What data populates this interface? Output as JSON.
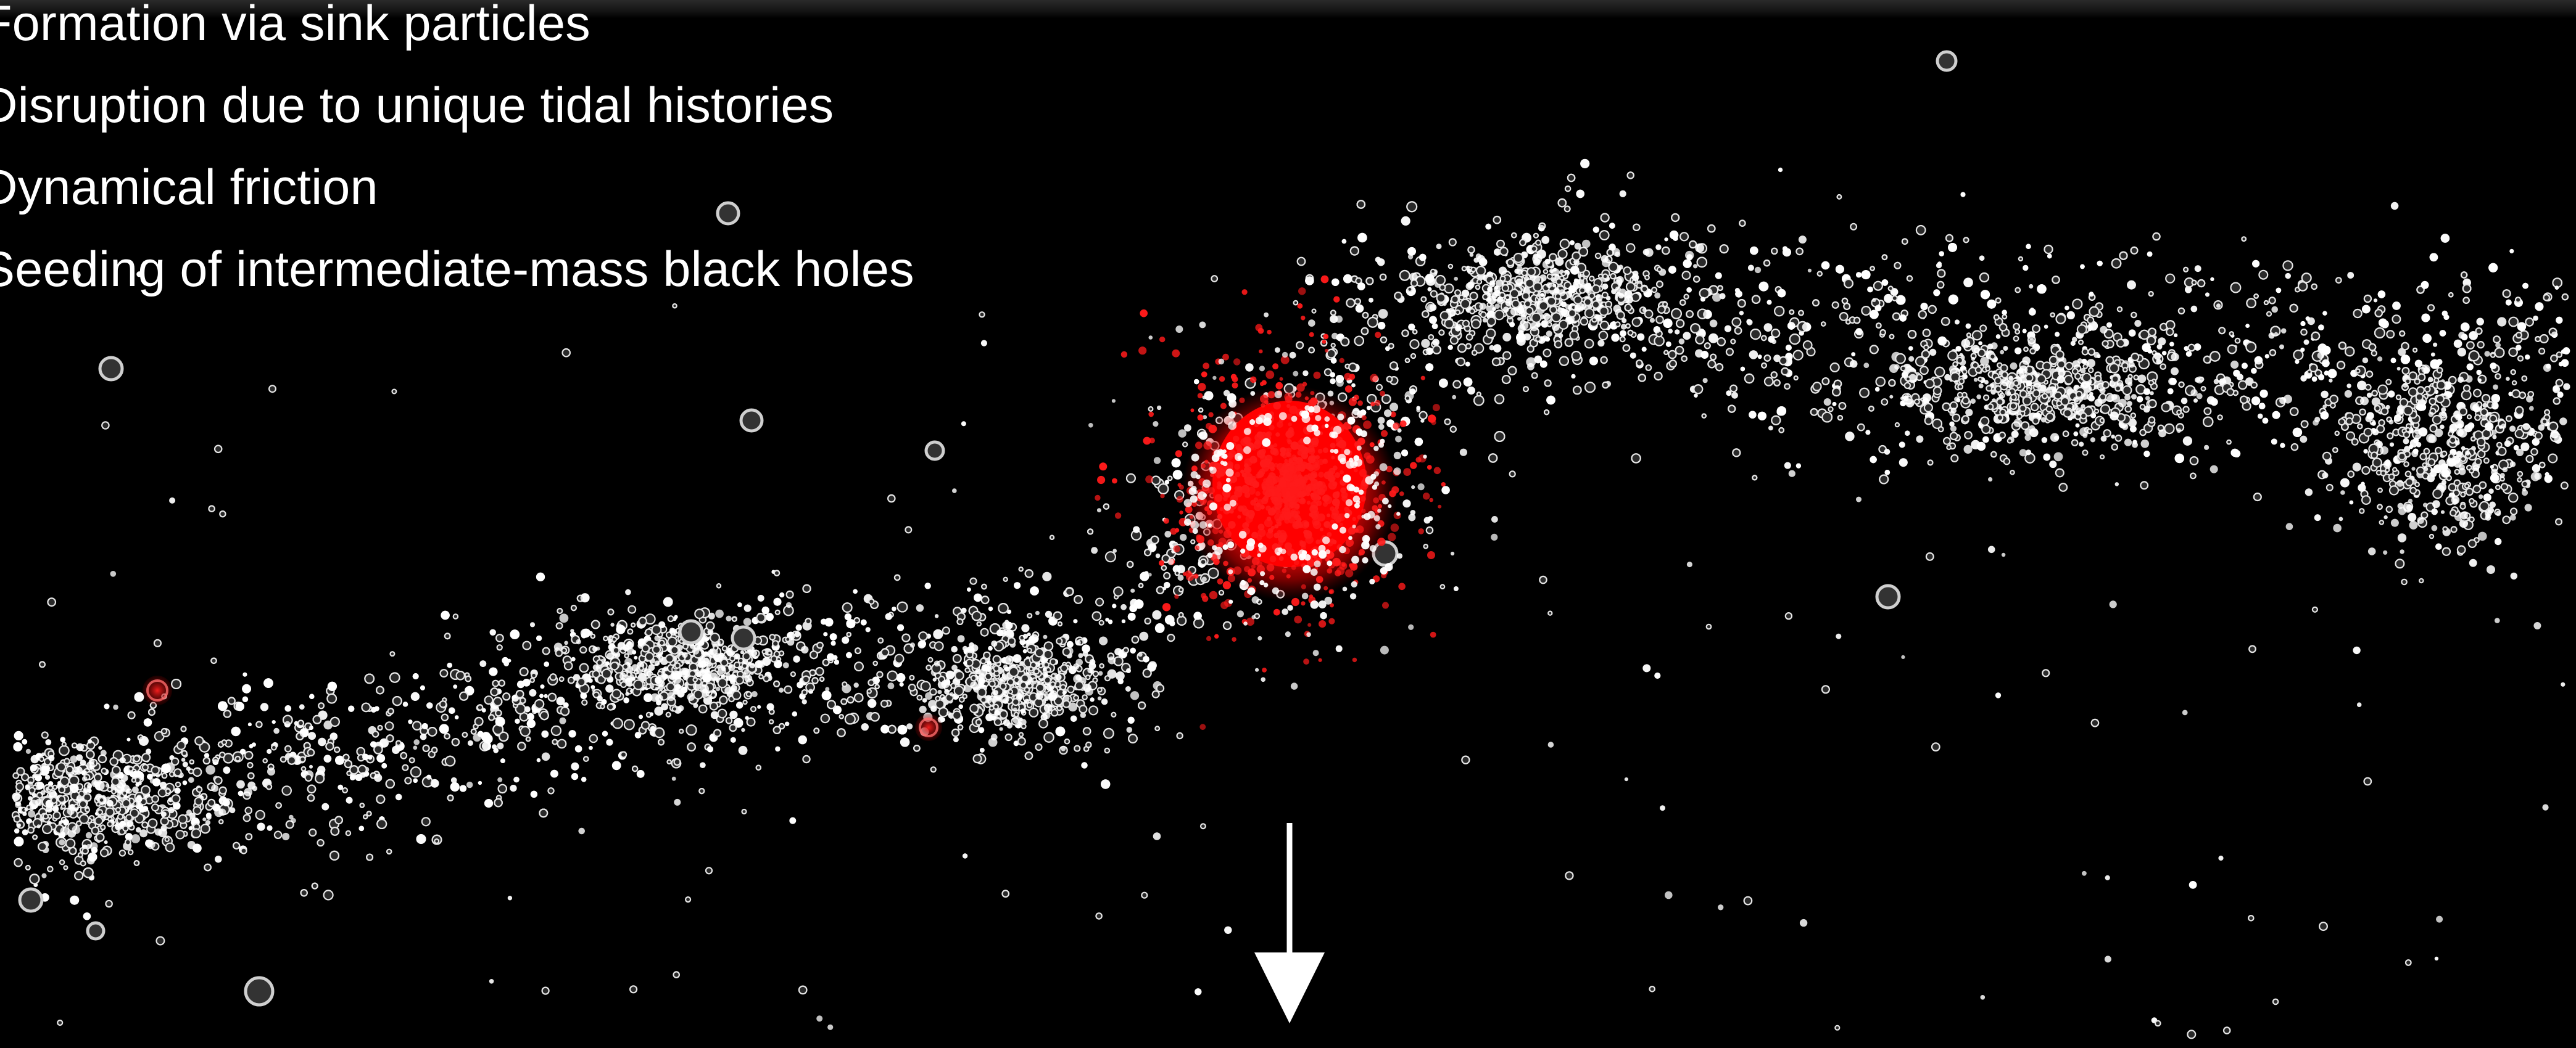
{
  "bullets": [
    "Formation via sink particles",
    "Disruption due to unique tidal histories",
    "Dynamical friction",
    "Seeding of intermediate-mass black holes"
  ],
  "colors": {
    "background": "#000000",
    "star_particle": "#ffffff",
    "cluster_particle": "#ff1a1a",
    "arrow": "#ffffff"
  },
  "icons": {
    "pointer": "down-arrow-icon"
  }
}
